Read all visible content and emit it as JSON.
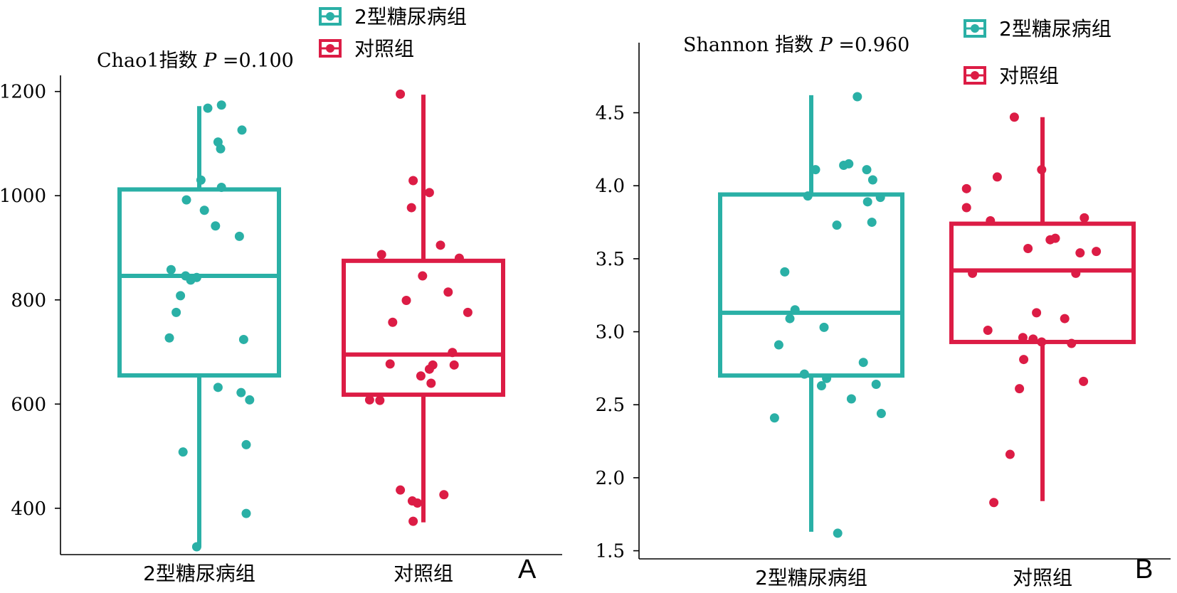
{
  "colors": {
    "t2d": "#2ab0a6",
    "control": "#dc1c45",
    "axis": "#000000"
  },
  "panels": [
    {
      "letter": "A",
      "legend": [
        "2型糖尿病组",
        "对照组"
      ]
    },
    {
      "letter": "B",
      "legend": [
        "2型糖尿病组",
        "对照组"
      ]
    }
  ],
  "chart_data": [
    {
      "type": "box",
      "title": "Chao1指数 P =0.100",
      "title_parts": {
        "label": "Chao1指数",
        "p_symbol": "P",
        "p_value": "=0.100"
      },
      "categories": [
        "2型糖尿病组",
        "对照组"
      ],
      "yticks": [
        400,
        600,
        800,
        1000,
        1200
      ],
      "ylim": [
        296,
        1231
      ],
      "legend_position": "top-center",
      "grid": false,
      "series": [
        {
          "name": "2型糖尿病组",
          "box": {
            "whisker_low": 325,
            "q1": 655,
            "median": 846,
            "q3": 1012,
            "whisker_high": 1172
          },
          "points": [
            [
              0.1,
              1168
            ],
            [
              0.26,
              1174
            ],
            [
              0.22,
              1103
            ],
            [
              0.25,
              1090
            ],
            [
              0.5,
              1126
            ],
            [
              0.02,
              1030
            ],
            [
              0.26,
              1016
            ],
            [
              -0.15,
              992
            ],
            [
              0.06,
              972
            ],
            [
              0.19,
              942
            ],
            [
              0.47,
              922
            ],
            [
              -0.16,
              846
            ],
            [
              -0.33,
              858
            ],
            [
              -0.03,
              843
            ],
            [
              -0.1,
              838
            ],
            [
              -0.22,
              808
            ],
            [
              -0.27,
              776
            ],
            [
              -0.35,
              727
            ],
            [
              0.52,
              724
            ],
            [
              0.22,
              632
            ],
            [
              0.49,
              622
            ],
            [
              0.59,
              608
            ],
            [
              0.55,
              522
            ],
            [
              -0.19,
              508
            ],
            [
              0.55,
              390
            ],
            [
              -0.03,
              326
            ]
          ]
        },
        {
          "name": "对照组",
          "box": {
            "whisker_low": 373,
            "q1": 618,
            "median": 695,
            "q3": 875,
            "whisker_high": 1194
          },
          "points": [
            [
              -0.27,
              1195
            ],
            [
              -0.12,
              1029
            ],
            [
              0.07,
              1006
            ],
            [
              -0.14,
              977
            ],
            [
              0.2,
              905
            ],
            [
              -0.49,
              887
            ],
            [
              0.42,
              880
            ],
            [
              -0.01,
              846
            ],
            [
              -0.2,
              799
            ],
            [
              0.29,
              815
            ],
            [
              0.52,
              776
            ],
            [
              -0.36,
              757
            ],
            [
              0.34,
              699
            ],
            [
              -0.39,
              677
            ],
            [
              0.11,
              675
            ],
            [
              0.07,
              667
            ],
            [
              0.36,
              675
            ],
            [
              -0.03,
              654
            ],
            [
              -0.51,
              607
            ],
            [
              -0.63,
              608
            ],
            [
              -0.27,
              435
            ],
            [
              -0.13,
              414
            ],
            [
              -0.07,
              410
            ],
            [
              0.24,
              426
            ],
            [
              -0.12,
              375
            ],
            [
              0.09,
              640
            ]
          ]
        }
      ]
    },
    {
      "type": "box",
      "title": "Shannon 指数 P =0.960",
      "title_parts": {
        "label": "Shannon 指数",
        "p_symbol": "P",
        "p_value": "=0.960"
      },
      "categories": [
        "2型糖尿病组",
        "对照组"
      ],
      "yticks": [
        1.5,
        2.0,
        2.5,
        3.0,
        3.5,
        4.0,
        4.5
      ],
      "ylim": [
        1.42,
        4.98
      ],
      "legend_position": "top-right",
      "grid": false,
      "series": [
        {
          "name": "2型糖尿病组",
          "box": {
            "whisker_low": 1.63,
            "q1": 2.7,
            "median": 3.13,
            "q3": 3.94,
            "whisker_high": 4.62
          },
          "points": [
            [
              0.54,
              4.61
            ],
            [
              0.38,
              4.14
            ],
            [
              0.44,
              4.15
            ],
            [
              0.05,
              4.11
            ],
            [
              0.65,
              4.11
            ],
            [
              0.72,
              4.04
            ],
            [
              0.66,
              3.89
            ],
            [
              0.81,
              3.92
            ],
            [
              -0.04,
              3.93
            ],
            [
              0.3,
              3.73
            ],
            [
              0.71,
              3.75
            ],
            [
              -0.31,
              3.41
            ],
            [
              -0.19,
              3.15
            ],
            [
              -0.25,
              3.09
            ],
            [
              0.15,
              3.03
            ],
            [
              -0.38,
              2.91
            ],
            [
              0.61,
              2.79
            ],
            [
              -0.08,
              2.71
            ],
            [
              0.18,
              2.68
            ],
            [
              0.12,
              2.63
            ],
            [
              0.76,
              2.64
            ],
            [
              0.47,
              2.54
            ],
            [
              0.82,
              2.44
            ],
            [
              -0.43,
              2.41
            ],
            [
              0.31,
              1.62
            ]
          ]
        },
        {
          "name": "对照组",
          "box": {
            "whisker_low": 1.84,
            "q1": 2.93,
            "median": 3.42,
            "q3": 3.74,
            "whisker_high": 4.47
          },
          "points": [
            [
              -0.33,
              4.47
            ],
            [
              -0.01,
              4.11
            ],
            [
              -0.53,
              4.06
            ],
            [
              -0.89,
              3.98
            ],
            [
              -0.89,
              3.85
            ],
            [
              -0.61,
              3.76
            ],
            [
              0.49,
              3.78
            ],
            [
              -0.17,
              3.57
            ],
            [
              0.09,
              3.63
            ],
            [
              0.15,
              3.64
            ],
            [
              0.44,
              3.54
            ],
            [
              0.63,
              3.55
            ],
            [
              -0.82,
              3.4
            ],
            [
              0.39,
              3.4
            ],
            [
              -0.07,
              3.13
            ],
            [
              0.26,
              3.09
            ],
            [
              -0.64,
              3.01
            ],
            [
              -0.23,
              2.96
            ],
            [
              -0.11,
              2.95
            ],
            [
              -0.01,
              2.93
            ],
            [
              0.34,
              2.92
            ],
            [
              -0.22,
              2.81
            ],
            [
              0.48,
              2.66
            ],
            [
              -0.27,
              2.61
            ],
            [
              -0.38,
              2.16
            ],
            [
              -0.57,
              1.83
            ]
          ]
        }
      ]
    }
  ]
}
